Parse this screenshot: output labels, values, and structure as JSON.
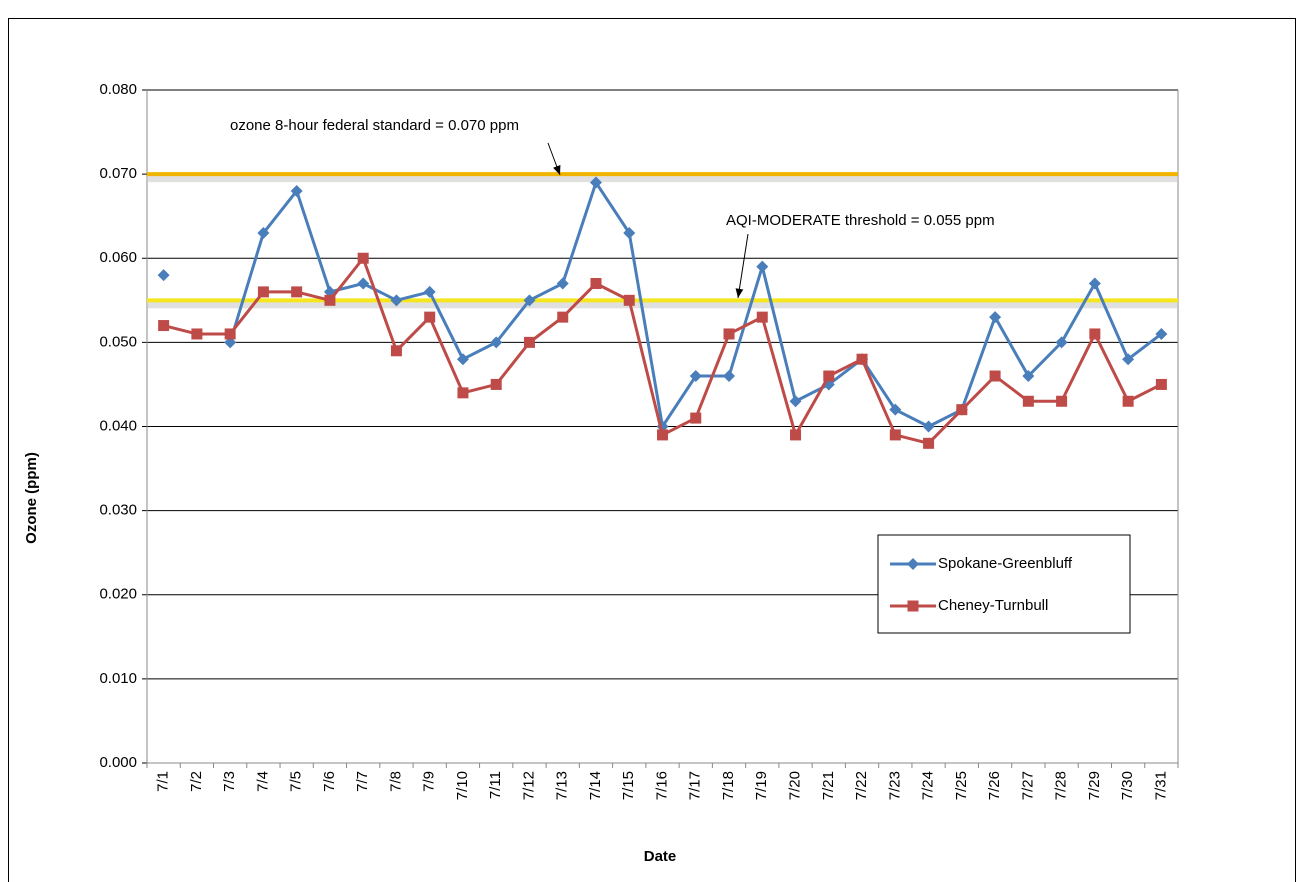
{
  "chart_data": {
    "type": "line",
    "x_label": "Date",
    "y_label": "Ozone (ppm)",
    "categories": [
      "7/1",
      "7/2",
      "7/3",
      "7/4",
      "7/5",
      "7/6",
      "7/7",
      "7/8",
      "7/9",
      "7/10",
      "7/11",
      "7/12",
      "7/13",
      "7/14",
      "7/15",
      "7/16",
      "7/17",
      "7/18",
      "7/19",
      "7/20",
      "7/21",
      "7/22",
      "7/23",
      "7/24",
      "7/25",
      "7/26",
      "7/27",
      "7/28",
      "7/29",
      "7/30",
      "7/31"
    ],
    "series": [
      {
        "name": "Spokane-Greenbluff",
        "color": "#4a7ebb",
        "marker": "diamond",
        "values": [
          0.058,
          null,
          0.05,
          0.063,
          0.068,
          0.056,
          0.057,
          0.055,
          0.056,
          0.048,
          0.05,
          0.055,
          0.057,
          0.069,
          0.063,
          0.04,
          0.046,
          0.046,
          0.059,
          0.043,
          0.045,
          0.048,
          0.042,
          0.04,
          0.042,
          0.053,
          0.046,
          0.05,
          0.057,
          0.048,
          0.051
        ]
      },
      {
        "name": "Cheney-Turnbull",
        "color": "#be4b48",
        "marker": "square",
        "values": [
          0.052,
          0.051,
          0.051,
          0.056,
          0.056,
          0.055,
          0.06,
          0.049,
          0.053,
          0.044,
          0.045,
          0.05,
          0.053,
          0.057,
          0.055,
          0.039,
          0.041,
          0.051,
          0.053,
          0.039,
          0.046,
          0.048,
          0.039,
          0.038,
          0.042,
          0.046,
          0.043,
          0.043,
          0.051,
          0.043,
          0.045
        ]
      }
    ],
    "reference_lines": [
      {
        "value": 0.07,
        "label": "ozone 8-hour federal standard = 0.070 ppm",
        "color": "#f0b400"
      },
      {
        "value": 0.055,
        "label": "AQI-MODERATE threshold = 0.055 ppm",
        "color": "#f5e61e"
      }
    ],
    "ylim": [
      0,
      0.08
    ],
    "yticks": [
      {
        "value": 0,
        "label": "0.000"
      },
      {
        "value": 0.01,
        "label": "0.010"
      },
      {
        "value": 0.02,
        "label": "0.020"
      },
      {
        "value": 0.03,
        "label": "0.030"
      },
      {
        "value": 0.04,
        "label": "0.040"
      },
      {
        "value": 0.05,
        "label": "0.050"
      },
      {
        "value": 0.06,
        "label": "0.060"
      },
      {
        "value": 0.07,
        "label": "0.070"
      },
      {
        "value": 0.08,
        "label": "0.080"
      }
    ],
    "grid": true,
    "legend": "lower right"
  }
}
